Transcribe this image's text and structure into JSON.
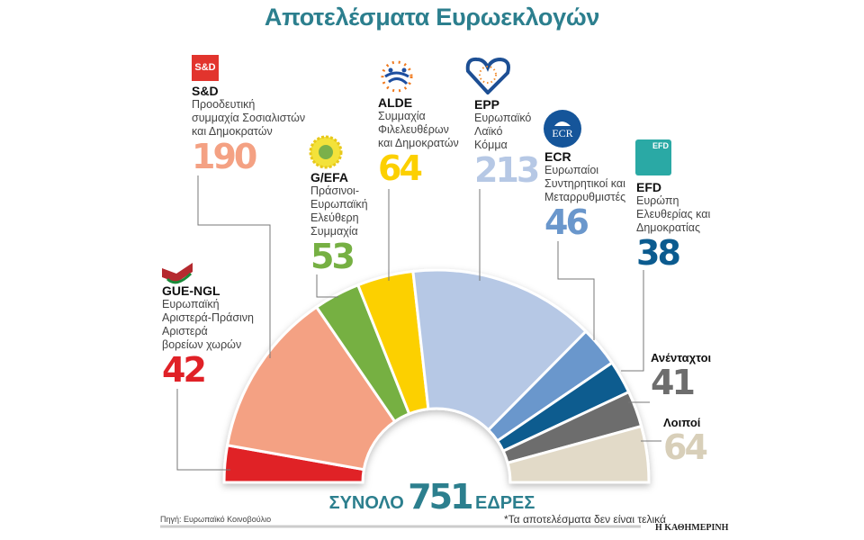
{
  "title": "Αποτελέσματα Ευρωεκλογών",
  "total": {
    "prefix": "ΣΥΝΟΛΟ",
    "value": "751",
    "suffix": "ΕΔΡΕΣ"
  },
  "source": "Πηγή: Ευρωπαϊκό Κοινοβούλιο",
  "note": "*Τα αποτελέσματα δεν είναι τελικά",
  "publisher": "Η ΚΑΘΗΜΕΡΙΝΗ",
  "chart_data": {
    "type": "pie",
    "subtype": "semicircle-parliament",
    "total": 751,
    "slices": [
      {
        "key": "gue",
        "name": "GUE-NGL",
        "desc": "Ευρωπαϊκή\nΑριστερά-Πράσινη\nΑριστερά\nβορείων χωρών",
        "value": 42,
        "color": "#e02127",
        "num_color": "#e02127"
      },
      {
        "key": "sd",
        "name": "S&D",
        "desc": "Προοδευτική\nσυμμαχία Σοσιαλιστών\nκαι Δημοκρατών",
        "value": 190,
        "color": "#f4a183",
        "num_color": "#f4a183",
        "logo_text": "S&D"
      },
      {
        "key": "gefa",
        "name": "G/EFA",
        "desc": "Πράσινοι-\nΕυρωπαϊκή\nΕλεύθερη\nΣυμμαχία",
        "value": 53,
        "color": "#76b043",
        "num_color": "#76b043"
      },
      {
        "key": "alde",
        "name": "ALDE",
        "desc": "Συμμαχία\nΦιλελευθέρων\nκαι Δημοκρατών",
        "value": 64,
        "color": "#fcd000",
        "num_color": "#fcd000"
      },
      {
        "key": "epp",
        "name": "EPP",
        "desc": "Ευρωπαϊκό\nΛαϊκό\nΚόμμα",
        "value": 213,
        "color": "#b6c8e5",
        "num_color": "#b6c8e5"
      },
      {
        "key": "ecr",
        "name": "ECR",
        "desc": "Ευρωπαίοι\nΣυντηρητικοί και\nΜεταρρυθμιστές",
        "value": 46,
        "color": "#6a97cc",
        "num_color": "#6a97cc",
        "logo_text": "ECR"
      },
      {
        "key": "efd",
        "name": "EFD",
        "desc": "Ευρώπη\nΕλευθερίας και\nΔημοκρατίας",
        "value": 38,
        "color": "#0b5b8f",
        "num_color": "#0b5b8f",
        "logo_text": "EFD"
      },
      {
        "key": "ni",
        "name": "Ανένταχτοι",
        "desc": "",
        "value": 41,
        "color": "#6d6d6d",
        "num_color": "#6d6d6d"
      },
      {
        "key": "oth",
        "name": "Λοιποί",
        "desc": "",
        "value": 64,
        "color": "#e2dac8",
        "num_color": "#d8cfb9"
      }
    ]
  }
}
